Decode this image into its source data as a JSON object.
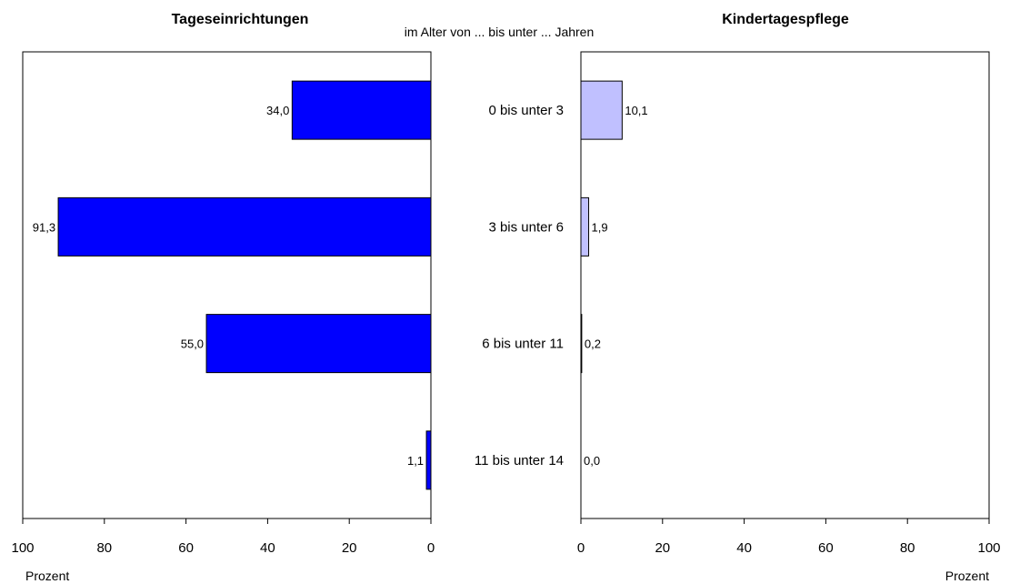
{
  "chart_data": {
    "type": "bar",
    "subtitle": "im Alter von ... bis unter ... Jahren",
    "categories": [
      "0 bis unter 3",
      "3 bis unter 6",
      "6 bis unter 11",
      "11 bis unter 14"
    ],
    "panels": [
      {
        "title": "Tageseinrichtungen",
        "values": [
          34.0,
          91.3,
          55.0,
          1.1
        ],
        "value_labels": [
          "34,0",
          "91,3",
          "55,0",
          "1,1"
        ],
        "xlim": [
          0,
          100
        ],
        "direction": "right-to-left",
        "color": "#0000FF",
        "ticks": [
          100,
          80,
          60,
          40,
          20,
          0
        ],
        "tick_labels": [
          "100",
          "80",
          "60",
          "40",
          "20",
          "0"
        ],
        "xlabel": "Prozent"
      },
      {
        "title": "Kindertagespflege",
        "values": [
          10.1,
          1.9,
          0.2,
          0.0
        ],
        "value_labels": [
          "10,1",
          "1,9",
          "0,2",
          "0,0"
        ],
        "xlim": [
          0,
          100
        ],
        "direction": "left-to-right",
        "color": "#C0C0FF",
        "ticks": [
          0,
          20,
          40,
          60,
          80,
          100
        ],
        "tick_labels": [
          "0",
          "20",
          "40",
          "60",
          "80",
          "100"
        ],
        "xlabel": "Prozent"
      }
    ]
  }
}
